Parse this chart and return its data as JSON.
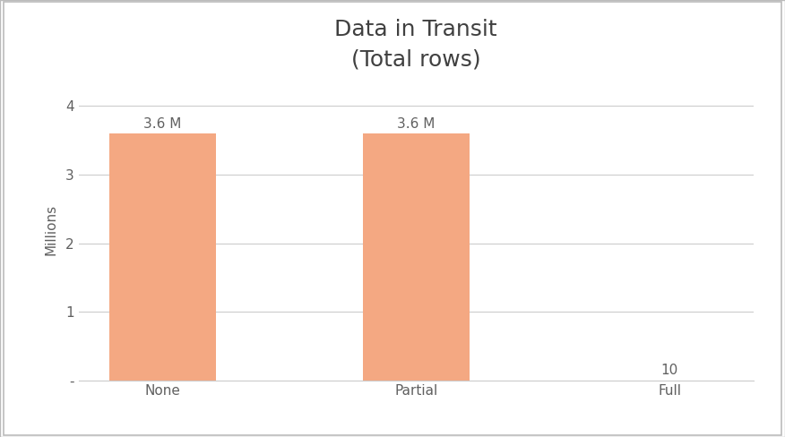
{
  "title": "Data in Transit",
  "subtitle": "(Total rows)",
  "categories": [
    "None",
    "Partial",
    "Full"
  ],
  "values": [
    3600000,
    3600000,
    10
  ],
  "bar_color": "#F4A882",
  "bar_labels": [
    "3.6 M",
    "3.6 M",
    "10"
  ],
  "ylabel": "Millions",
  "ylim": [
    0,
    4400000
  ],
  "yticks": [
    0,
    1000000,
    2000000,
    3000000,
    4000000
  ],
  "ytick_labels": [
    "-",
    "1",
    "2",
    "3",
    "4"
  ],
  "background_color": "#ffffff",
  "grid_color": "#cccccc",
  "border_color": "#bbbbbb",
  "title_fontsize": 18,
  "label_fontsize": 11,
  "tick_fontsize": 11,
  "bar_label_fontsize": 11,
  "title_color": "#404040",
  "tick_color": "#606060",
  "ylabel_color": "#606060"
}
